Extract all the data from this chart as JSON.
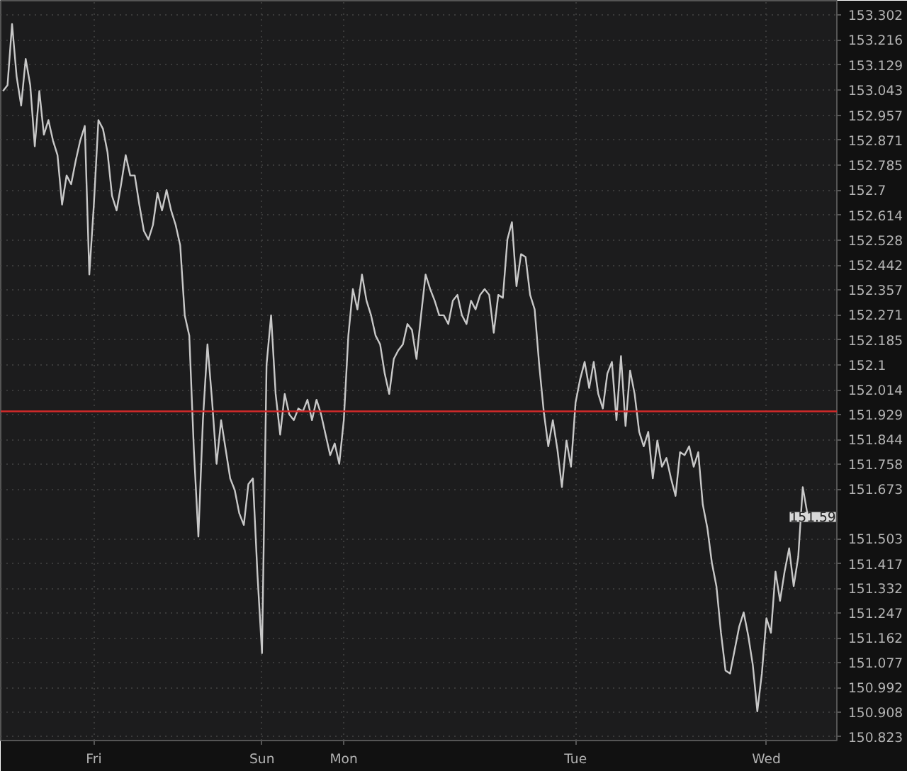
{
  "chart_data": {
    "type": "line",
    "series": [
      {
        "color": "#c8c8c8",
        "values": [
          153.04,
          153.06,
          153.27,
          153.09,
          152.99,
          153.15,
          153.06,
          152.85,
          153.04,
          152.89,
          152.94,
          152.87,
          152.82,
          152.65,
          152.75,
          152.72,
          152.8,
          152.87,
          152.92,
          152.41,
          152.65,
          152.94,
          152.91,
          152.83,
          152.68,
          152.63,
          152.72,
          152.82,
          152.75,
          152.75,
          152.65,
          152.56,
          152.53,
          152.58,
          152.69,
          152.63,
          152.7,
          152.63,
          152.58,
          152.51,
          152.27,
          152.2,
          151.81,
          151.51,
          151.91,
          152.17,
          151.98,
          151.76,
          151.91,
          151.81,
          151.71,
          151.67,
          151.59,
          151.55,
          151.69,
          151.71,
          151.38,
          151.11,
          152.1,
          152.27,
          152.0,
          151.86,
          152.0,
          151.93,
          151.91,
          151.95,
          151.94,
          151.98,
          151.91,
          151.98,
          151.93,
          151.86,
          151.79,
          151.83,
          151.76,
          151.91,
          152.2,
          152.36,
          152.29,
          152.41,
          152.32,
          152.27,
          152.2,
          152.17,
          152.07,
          152.0,
          152.12,
          152.15,
          152.17,
          152.24,
          152.22,
          152.12,
          152.27,
          152.41,
          152.36,
          152.32,
          152.27,
          152.27,
          152.24,
          152.32,
          152.34,
          152.27,
          152.24,
          152.32,
          152.29,
          152.34,
          152.36,
          152.34,
          152.21,
          152.34,
          152.33,
          152.53,
          152.59,
          152.37,
          152.48,
          152.47,
          152.34,
          152.29,
          152.1,
          151.94,
          151.82,
          151.91,
          151.81,
          151.68,
          151.84,
          151.75,
          151.97,
          152.05,
          152.11,
          152.02,
          152.11,
          152.0,
          151.95,
          152.07,
          152.11,
          151.91,
          152.13,
          151.89,
          152.08,
          152.0,
          151.87,
          151.82,
          151.87,
          151.71,
          151.84,
          151.75,
          151.78,
          151.71,
          151.65,
          151.8,
          151.79,
          151.82,
          151.75,
          151.8,
          151.62,
          151.54,
          151.42,
          151.34,
          151.18,
          151.05,
          151.04,
          151.12,
          151.2,
          151.25,
          151.17,
          151.07,
          150.91,
          151.04,
          151.23,
          151.18,
          151.39,
          151.29,
          151.39,
          151.47,
          151.34,
          151.44,
          151.68,
          151.59
        ]
      }
    ],
    "categories": [
      null,
      null,
      null,
      null,
      null,
      null,
      null,
      null,
      null,
      null,
      null,
      null,
      null,
      null,
      null,
      null,
      null,
      null,
      null,
      null,
      "Fri",
      null,
      null,
      null,
      null,
      null,
      null,
      null,
      null,
      null,
      null,
      null,
      null,
      null,
      null,
      null,
      null,
      null,
      null,
      null,
      null,
      null,
      null,
      null,
      null,
      null,
      null,
      null,
      null,
      null,
      null,
      null,
      null,
      null,
      null,
      null,
      null,
      "Sun",
      null,
      null,
      null,
      null,
      null,
      null,
      null,
      null,
      null,
      null,
      null,
      null,
      null,
      null,
      null,
      null,
      null,
      "Mon",
      null,
      null,
      null,
      null,
      null,
      null,
      null,
      null,
      null,
      null,
      null,
      null,
      null,
      null,
      null,
      null,
      null,
      null,
      null,
      null,
      null,
      null,
      null,
      null,
      null,
      null,
      null,
      null,
      null,
      null,
      null,
      null,
      null,
      null,
      null,
      null,
      null,
      null,
      null,
      null,
      null,
      null,
      null,
      null,
      null,
      null,
      null,
      null,
      null,
      null,
      "Tue",
      null,
      null,
      null,
      null,
      null,
      null,
      null,
      null,
      null,
      null,
      null,
      null,
      null,
      null,
      null,
      null,
      null,
      null,
      null,
      null,
      null,
      null,
      null,
      null,
      null,
      null,
      null,
      null,
      null,
      null,
      null,
      null,
      null,
      null,
      null,
      null,
      null,
      null,
      null,
      null,
      null,
      "Wed",
      null,
      null,
      null,
      null,
      null,
      null,
      null,
      null,
      null
    ],
    "ylim": [
      150.81,
      153.35
    ],
    "yticks": [
      150.823,
      150.908,
      150.992,
      151.077,
      151.162,
      151.247,
      151.332,
      151.417,
      151.503,
      151.673,
      151.758,
      151.844,
      151.929,
      152.014,
      152.1,
      152.185,
      152.271,
      152.357,
      152.442,
      152.528,
      152.614,
      152.7,
      152.785,
      152.871,
      152.957,
      153.043,
      153.129,
      153.216,
      153.302
    ],
    "ref_lines": [
      {
        "axis": "y",
        "value": 151.94,
        "color": "#d42a2a"
      }
    ],
    "annotations": [
      {
        "text": "151.59",
        "y": 151.59
      }
    ],
    "grid": true,
    "marker": "none",
    "line_style": "solid"
  }
}
